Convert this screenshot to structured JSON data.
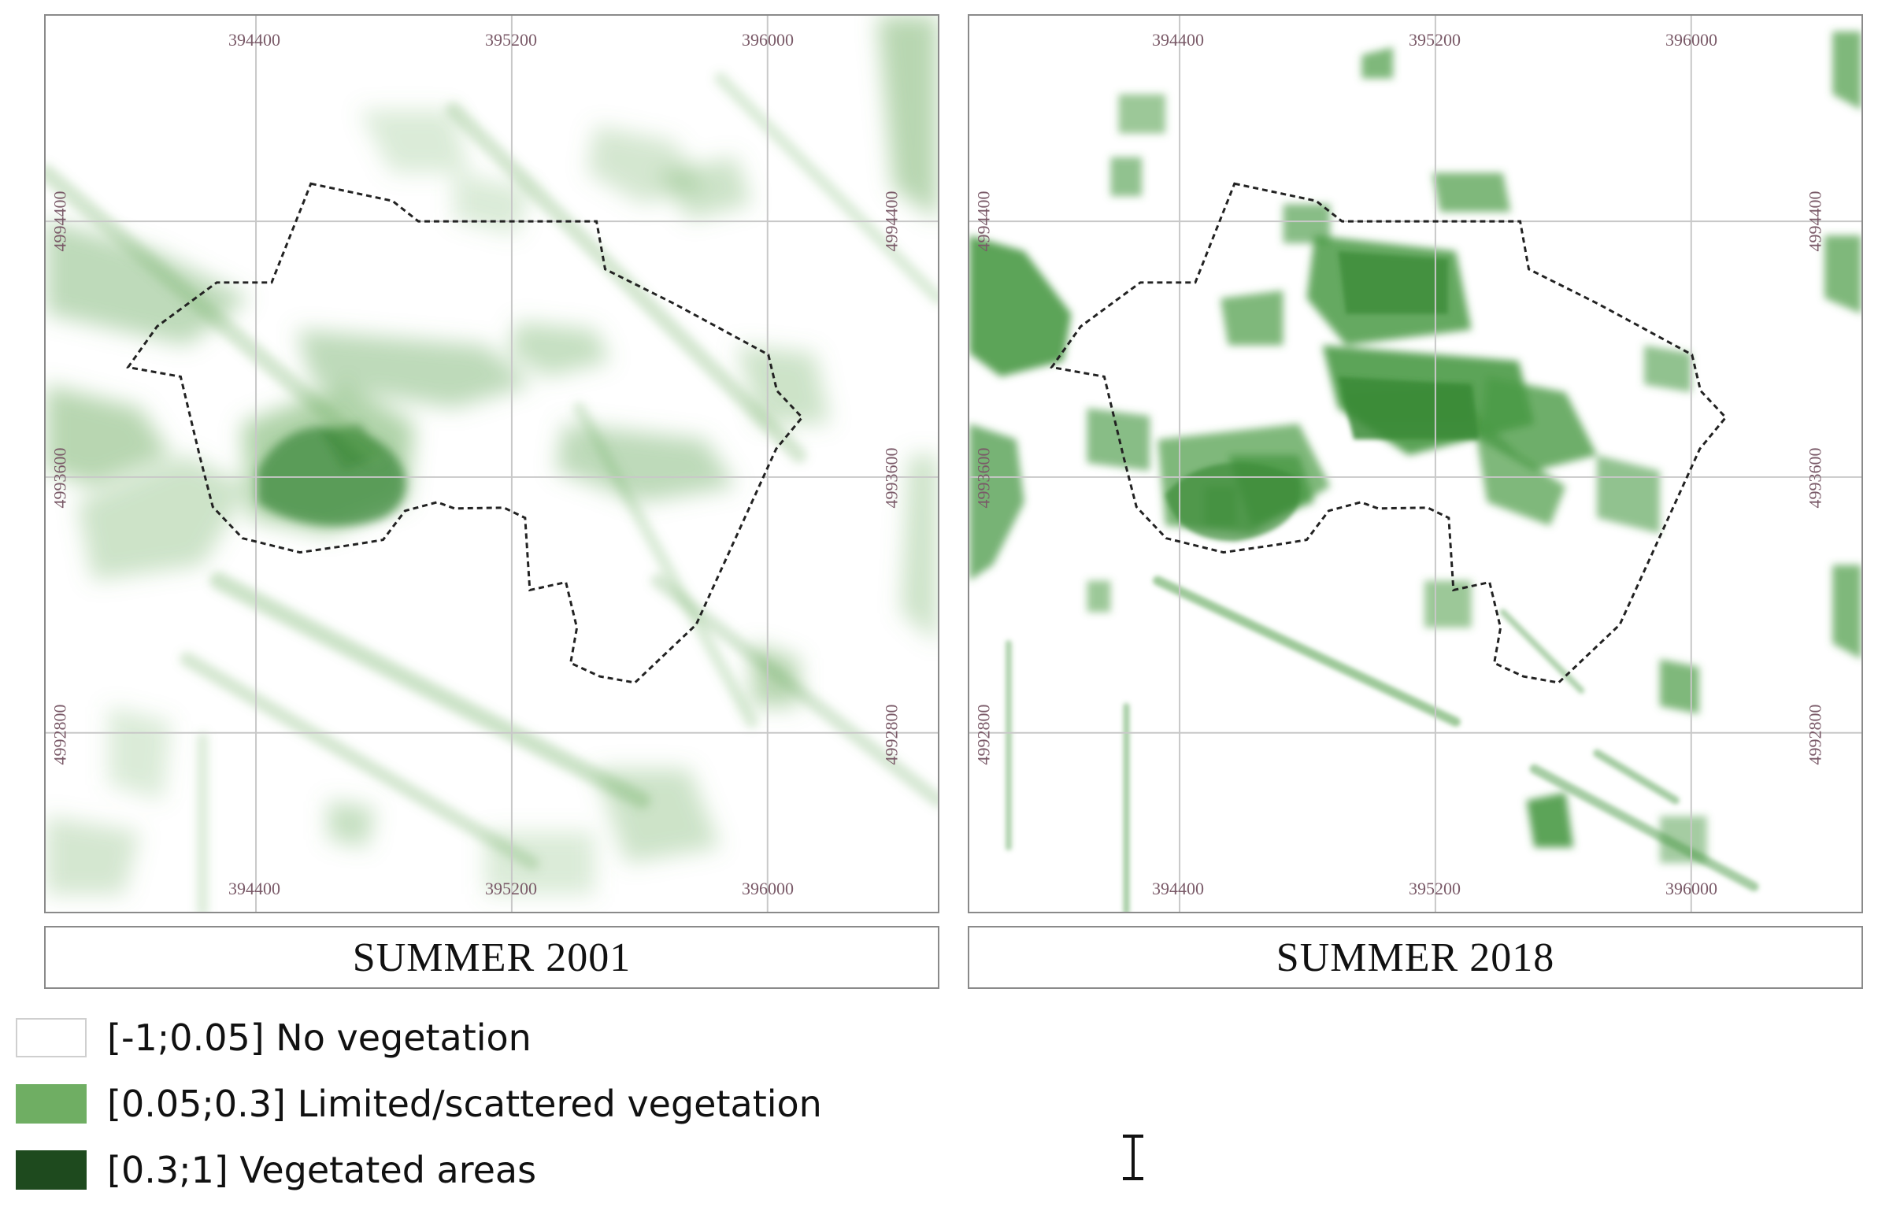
{
  "colors": {
    "no_vegetation": "#ffffff",
    "limited_vegetation": "#6fae63",
    "vegetated": "#1e4a1e",
    "boundary": "#222222",
    "grid": "#c8c8c8",
    "coord_text": "#7a5a68"
  },
  "maps": [
    {
      "title": "SUMMER 2001",
      "top_ticks": [
        "394400",
        "395200",
        "396000"
      ],
      "bottom_ticks": [
        "394400",
        "395200",
        "396000"
      ],
      "left_ticks": [
        "4994400",
        "4993600",
        "4992800"
      ],
      "right_ticks": [
        "4994400",
        "4993600",
        "4992800"
      ]
    },
    {
      "title": "SUMMER 2018",
      "top_ticks": [
        "394400",
        "395200",
        "396000"
      ],
      "bottom_ticks": [
        "394400",
        "395200",
        "396000"
      ],
      "left_ticks": [
        "4994400",
        "4993600",
        "4992800"
      ],
      "right_ticks": [
        "4994400",
        "4993600",
        "4992800"
      ]
    }
  ],
  "legend": [
    {
      "label": "[-1;0.05] No vegetation",
      "color": "#ffffff"
    },
    {
      "label": "[0.05;0.3] Limited/scattered vegetation",
      "color": "#6fae63"
    },
    {
      "label": "[0.3;1] Vegetated areas",
      "color": "#1e4a1e"
    }
  ],
  "cursor_icon": "text-cursor-icon"
}
